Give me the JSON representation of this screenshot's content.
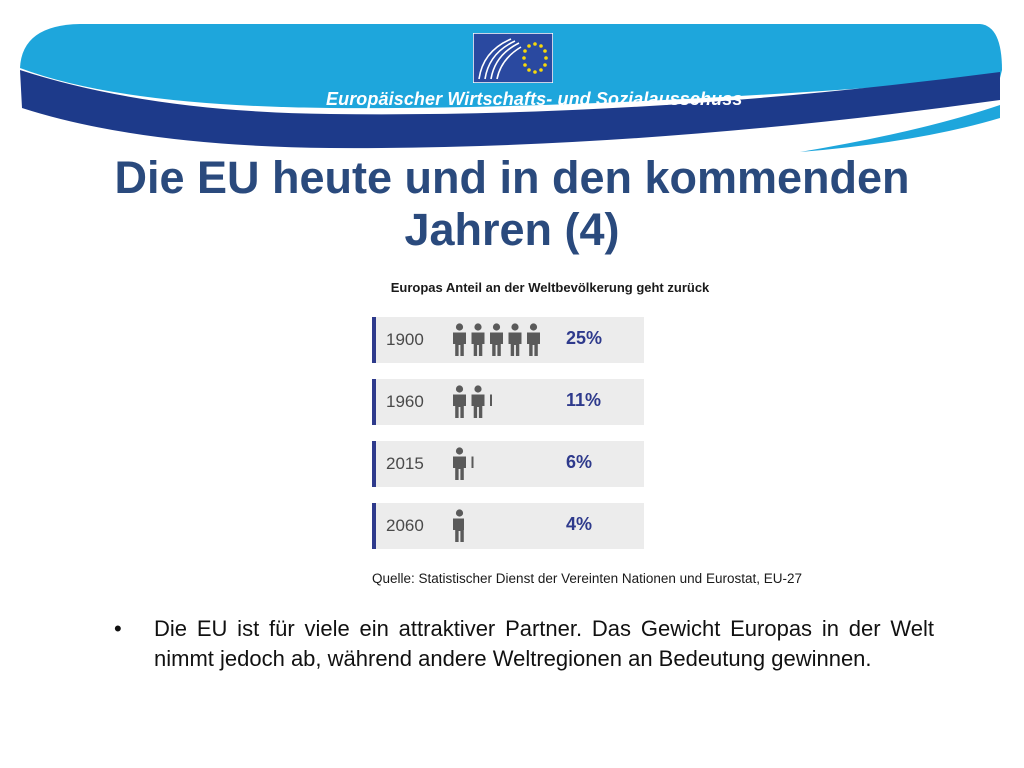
{
  "header": {
    "organization_name": "Europäischer Wirtschafts- und Sozialausschuss",
    "logo_icon": "eesc-eu-flag-logo",
    "colors": {
      "banner_light_blue": "#1ea6dc",
      "banner_dark_blue": "#1d3a8a",
      "logo_blue": "#2a49a0",
      "star_yellow": "#f7d90a"
    }
  },
  "slide": {
    "title_line1": "Die EU heute und in den kommenden",
    "title_line2": "Jahren (4)",
    "title_color": "#2a4a7d"
  },
  "infographic": {
    "title": "Europas Anteil an der Weltbevölkerung geht zurück",
    "person_icon": "person-icon",
    "rows": [
      {
        "year": "1900",
        "percent": "25%",
        "people_count": 5
      },
      {
        "year": "1960",
        "percent": "11%",
        "people_count": 2.2
      },
      {
        "year": "2015",
        "percent": "6%",
        "people_count": 1.2
      },
      {
        "year": "2060",
        "percent": "4%",
        "people_count": 0.8
      }
    ],
    "source": "Quelle: Statistischer Dienst der Vereinten Nationen  und  Eurostat, EU-27",
    "colors": {
      "row_background": "#ececec",
      "accent_bar": "#2e3a8c",
      "percent_text": "#2e3a8c",
      "person_icon": "#5a5a5a"
    }
  },
  "bullets": [
    "Die EU ist für viele ein attraktiver Partner. Das Gewicht Europas in der Welt nimmt jedoch ab, während andere Weltregionen an Bedeutung gewinnen."
  ]
}
